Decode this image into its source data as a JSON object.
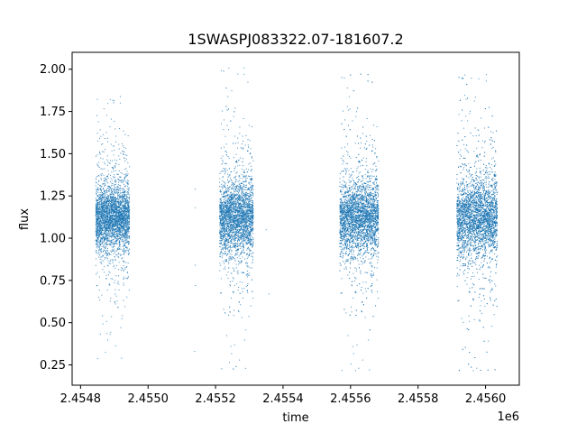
{
  "chart_data": {
    "type": "scatter",
    "title": "1SWASPJ083322.07-181607.2",
    "xlabel": "time",
    "ylabel": "flux",
    "x_offset_label": "1e6",
    "xlim": [
      2454775,
      2456100
    ],
    "ylim": [
      0.13,
      2.1
    ],
    "x_ticks": [
      2454800,
      2455000,
      2455200,
      2455400,
      2455600,
      2455800,
      2456000
    ],
    "x_tick_labels": [
      "2.4548",
      "2.4550",
      "2.4552",
      "2.4554",
      "2.4556",
      "2.4558",
      "2.4560"
    ],
    "y_ticks": [
      0.25,
      0.5,
      0.75,
      1.0,
      1.25,
      1.5,
      1.75,
      2.0
    ],
    "y_tick_labels": [
      "0.25",
      "0.50",
      "0.75",
      "1.00",
      "1.25",
      "1.50",
      "1.75",
      "2.00"
    ],
    "grid": false,
    "legend": "none",
    "marker_color": "#1f77b4",
    "series": [
      {
        "clusters": [
          {
            "x_range": [
              2454845,
              2454945
            ],
            "center": 1.12,
            "core_spread": 0.09,
            "min": 0.28,
            "max": 1.85,
            "density": 3200
          },
          {
            "x_range": [
              2455212,
              2455312
            ],
            "center": 1.12,
            "core_spread": 0.1,
            "min": 0.22,
            "max": 2.02,
            "density": 3200
          },
          {
            "x_range": [
              2455568,
              2455683
            ],
            "center": 1.12,
            "core_spread": 0.1,
            "min": 0.21,
            "max": 1.98,
            "density": 3600
          },
          {
            "x_range": [
              2455915,
              2456035
            ],
            "center": 1.12,
            "core_spread": 0.11,
            "min": 0.21,
            "max": 1.98,
            "density": 3800
          }
        ],
        "sparse_points": [
          {
            "x": 2455140,
            "y": 1.29
          },
          {
            "x": 2455140,
            "y": 0.72
          },
          {
            "x": 2455140,
            "y": 0.84
          },
          {
            "x": 2455138,
            "y": 0.33
          },
          {
            "x": 2455140,
            "y": 1.18
          },
          {
            "x": 2455358,
            "y": 0.67
          },
          {
            "x": 2455350,
            "y": 1.05
          }
        ]
      }
    ]
  }
}
